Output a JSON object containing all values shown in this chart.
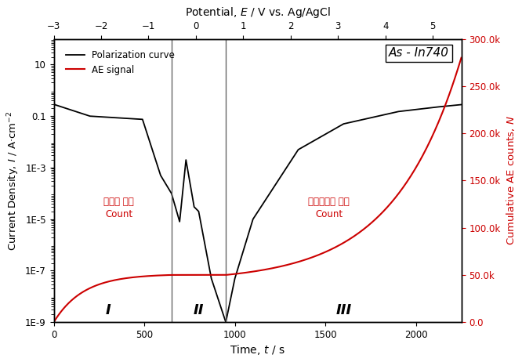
{
  "title": "As - In740",
  "xlabel_bottom": "Time, $t$ / s",
  "xlabel_top": "Potential, $E$ / V vs. Ag/AgCl",
  "ylabel_left": "Current Density, $I$ / A·cm$^{-2}$",
  "ylabel_right": "Cumulative AE counts, $N$",
  "legend_polarization": "Polarization curve",
  "legend_ae": "AE signal",
  "annotation_left_korean": "수소에 의한",
  "annotation_left_english": "Count",
  "annotation_right_korean": "표면부식에 의한",
  "annotation_right_english": "Count",
  "label_I": "I",
  "label_II": "II",
  "label_III": "III",
  "vline1_t": 650,
  "vline2_t": 950,
  "time_min": 0,
  "time_max": 2250,
  "potential_min": -3.0,
  "potential_max": 5.6,
  "current_ylim_min": 1e-09,
  "current_ylim_max": 100,
  "ae_ylim_min": 0,
  "ae_ylim_max": 300000,
  "background_color": "#ffffff",
  "polarization_color": "#000000",
  "ae_color": "#cc0000",
  "vline_color": "#666666"
}
